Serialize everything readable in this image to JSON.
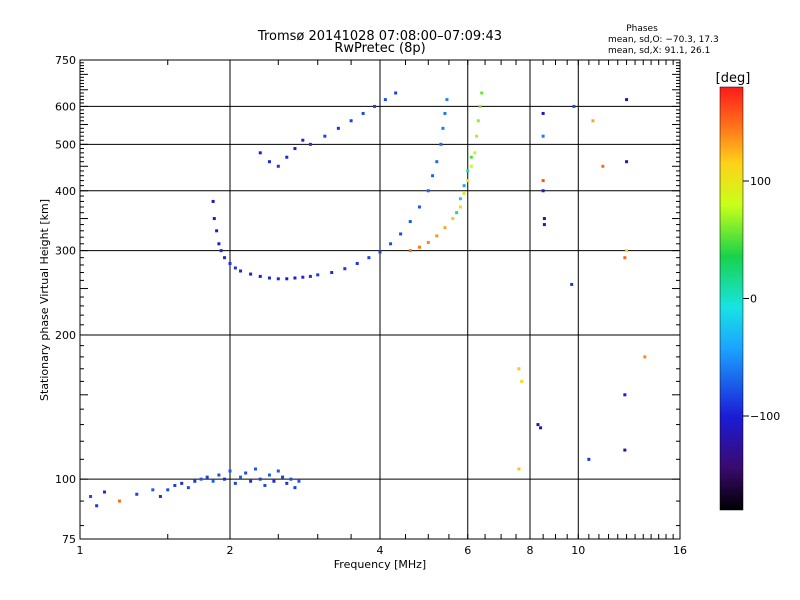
{
  "chart_data": {
    "type": "scatter",
    "title": "Tromsø 20141028 07:08:00–07:09:43",
    "subtitle": "RwPretec (8p)",
    "xlabel": "Frequency [MHz]",
    "ylabel": "Stationary phase Virtual Height [km]",
    "x_scale": "log",
    "y_scale": "log",
    "xlim": [
      1,
      16
    ],
    "ylim": [
      75,
      750
    ],
    "x_ticks": [
      1,
      2,
      4,
      6,
      8,
      10,
      16
    ],
    "x_tick_labels": [
      "1",
      "2",
      "4",
      "6",
      "8",
      "10",
      "16"
    ],
    "y_ticks": [
      75,
      100,
      200,
      300,
      400,
      500,
      600,
      750
    ],
    "y_tick_labels": [
      "75",
      "100",
      "200",
      "300",
      "400",
      "500",
      "600",
      "750"
    ],
    "grid": true,
    "phases": {
      "title": "Phases",
      "line1": "mean, sd,O: −70.3, 17.3",
      "line2": "mean, sd,X:  91.1, 26.1"
    },
    "colorbar": {
      "label": "[deg]",
      "range": [
        -180,
        180
      ],
      "ticks": [
        100,
        0,
        -100
      ],
      "tick_labels": [
        "100",
        "0",
        "−100"
      ]
    },
    "series": [
      {
        "points": [
          [
            1.05,
            92,
            -80
          ],
          [
            1.08,
            88,
            -90
          ],
          [
            1.12,
            94,
            -95
          ],
          [
            1.2,
            90,
            150
          ],
          [
            1.3,
            93,
            -85
          ],
          [
            1.4,
            95,
            -75
          ],
          [
            1.45,
            92,
            -90
          ],
          [
            1.5,
            95,
            -80
          ],
          [
            1.55,
            97,
            -85
          ],
          [
            1.6,
            98,
            -95
          ],
          [
            1.65,
            96,
            -80
          ],
          [
            1.7,
            99,
            -90
          ],
          [
            1.75,
            100,
            -75
          ],
          [
            1.8,
            101,
            -85
          ],
          [
            1.85,
            99,
            -70
          ],
          [
            1.9,
            102,
            -80
          ],
          [
            1.95,
            100,
            -95
          ],
          [
            2.0,
            104,
            -75
          ],
          [
            2.05,
            98,
            -85
          ],
          [
            2.1,
            101,
            -70
          ],
          [
            2.15,
            103,
            -80
          ],
          [
            2.2,
            99,
            -90
          ],
          [
            2.25,
            105,
            -75
          ],
          [
            2.3,
            100,
            -85
          ],
          [
            2.35,
            97,
            -80
          ],
          [
            2.4,
            102,
            -70
          ],
          [
            2.45,
            99,
            -95
          ],
          [
            2.5,
            104,
            -75
          ],
          [
            2.55,
            101,
            -85
          ],
          [
            2.6,
            98,
            -90
          ],
          [
            2.65,
            100,
            -80
          ],
          [
            2.7,
            96,
            -85
          ],
          [
            2.75,
            99,
            -75
          ]
        ]
      },
      {
        "points": [
          [
            1.85,
            380,
            -110
          ],
          [
            1.86,
            350,
            -105
          ],
          [
            1.88,
            330,
            -100
          ],
          [
            1.9,
            310,
            -100
          ],
          [
            1.92,
            300,
            -95
          ],
          [
            1.95,
            290,
            -95
          ],
          [
            2.0,
            282,
            -90
          ],
          [
            2.05,
            276,
            -90
          ],
          [
            2.1,
            272,
            -95
          ],
          [
            2.2,
            268,
            -100
          ],
          [
            2.3,
            265,
            -100
          ],
          [
            2.4,
            263,
            -95
          ],
          [
            2.5,
            262,
            -95
          ],
          [
            2.6,
            262,
            -100
          ],
          [
            2.7,
            263,
            -100
          ],
          [
            2.8,
            264,
            -95
          ],
          [
            2.9,
            265,
            -90
          ],
          [
            3.0,
            267,
            -90
          ],
          [
            3.2,
            270,
            -95
          ],
          [
            3.4,
            275,
            -90
          ],
          [
            3.6,
            282,
            -90
          ],
          [
            3.8,
            290,
            -85
          ],
          [
            4.0,
            298,
            -85
          ],
          [
            4.2,
            310,
            -80
          ],
          [
            4.4,
            325,
            -80
          ],
          [
            4.6,
            345,
            -75
          ],
          [
            4.8,
            370,
            -75
          ],
          [
            5.0,
            400,
            -70
          ],
          [
            5.1,
            430,
            -70
          ],
          [
            5.2,
            460,
            -65
          ],
          [
            5.3,
            500,
            -65
          ],
          [
            5.35,
            540,
            -60
          ],
          [
            5.4,
            580,
            -60
          ],
          [
            5.45,
            620,
            -55
          ],
          [
            2.3,
            480,
            -100
          ],
          [
            2.4,
            460,
            -95
          ],
          [
            2.5,
            450,
            -90
          ],
          [
            2.6,
            470,
            -95
          ],
          [
            2.7,
            490,
            -100
          ],
          [
            2.8,
            510,
            -95
          ],
          [
            2.9,
            500,
            -90
          ],
          [
            3.1,
            520,
            -85
          ],
          [
            3.3,
            540,
            -90
          ],
          [
            3.5,
            560,
            -85
          ],
          [
            3.7,
            580,
            -80
          ],
          [
            3.9,
            600,
            -85
          ],
          [
            4.1,
            620,
            -80
          ],
          [
            4.3,
            640,
            -85
          ]
        ]
      },
      {
        "points": [
          [
            4.6,
            300,
            150
          ],
          [
            4.8,
            305,
            145
          ],
          [
            5.0,
            312,
            140
          ],
          [
            5.2,
            322,
            135
          ],
          [
            5.4,
            335,
            130
          ],
          [
            5.6,
            350,
            120
          ],
          [
            5.8,
            370,
            110
          ],
          [
            5.9,
            395,
            100
          ],
          [
            6.0,
            420,
            90
          ],
          [
            6.1,
            450,
            80
          ],
          [
            6.2,
            480,
            75
          ],
          [
            6.25,
            520,
            70
          ],
          [
            6.3,
            560,
            65
          ],
          [
            6.35,
            600,
            60
          ],
          [
            6.4,
            640,
            55
          ],
          [
            5.7,
            360,
            20
          ],
          [
            5.8,
            385,
            -20
          ],
          [
            5.9,
            410,
            -40
          ],
          [
            6.0,
            440,
            10
          ],
          [
            6.1,
            470,
            50
          ]
        ]
      },
      {
        "points": [
          [
            7.6,
            170,
            120
          ],
          [
            7.7,
            160,
            110
          ],
          [
            7.6,
            105,
            120
          ],
          [
            8.3,
            130,
            -120
          ],
          [
            8.4,
            128,
            -110
          ],
          [
            8.5,
            580,
            -110
          ],
          [
            8.5,
            520,
            -60
          ],
          [
            8.5,
            420,
            160
          ],
          [
            8.5,
            400,
            -100
          ],
          [
            8.55,
            350,
            -120
          ],
          [
            8.55,
            340,
            -110
          ],
          [
            9.8,
            600,
            -80
          ],
          [
            9.7,
            255,
            -90
          ],
          [
            10.7,
            560,
            130
          ],
          [
            11.2,
            450,
            150
          ],
          [
            12.5,
            620,
            -120
          ],
          [
            12.5,
            460,
            -110
          ],
          [
            12.5,
            300,
            110
          ],
          [
            12.4,
            290,
            150
          ],
          [
            12.4,
            150,
            -100
          ],
          [
            12.4,
            115,
            -130
          ],
          [
            10.5,
            110,
            -90
          ],
          [
            13.6,
            180,
            140
          ]
        ]
      }
    ]
  }
}
